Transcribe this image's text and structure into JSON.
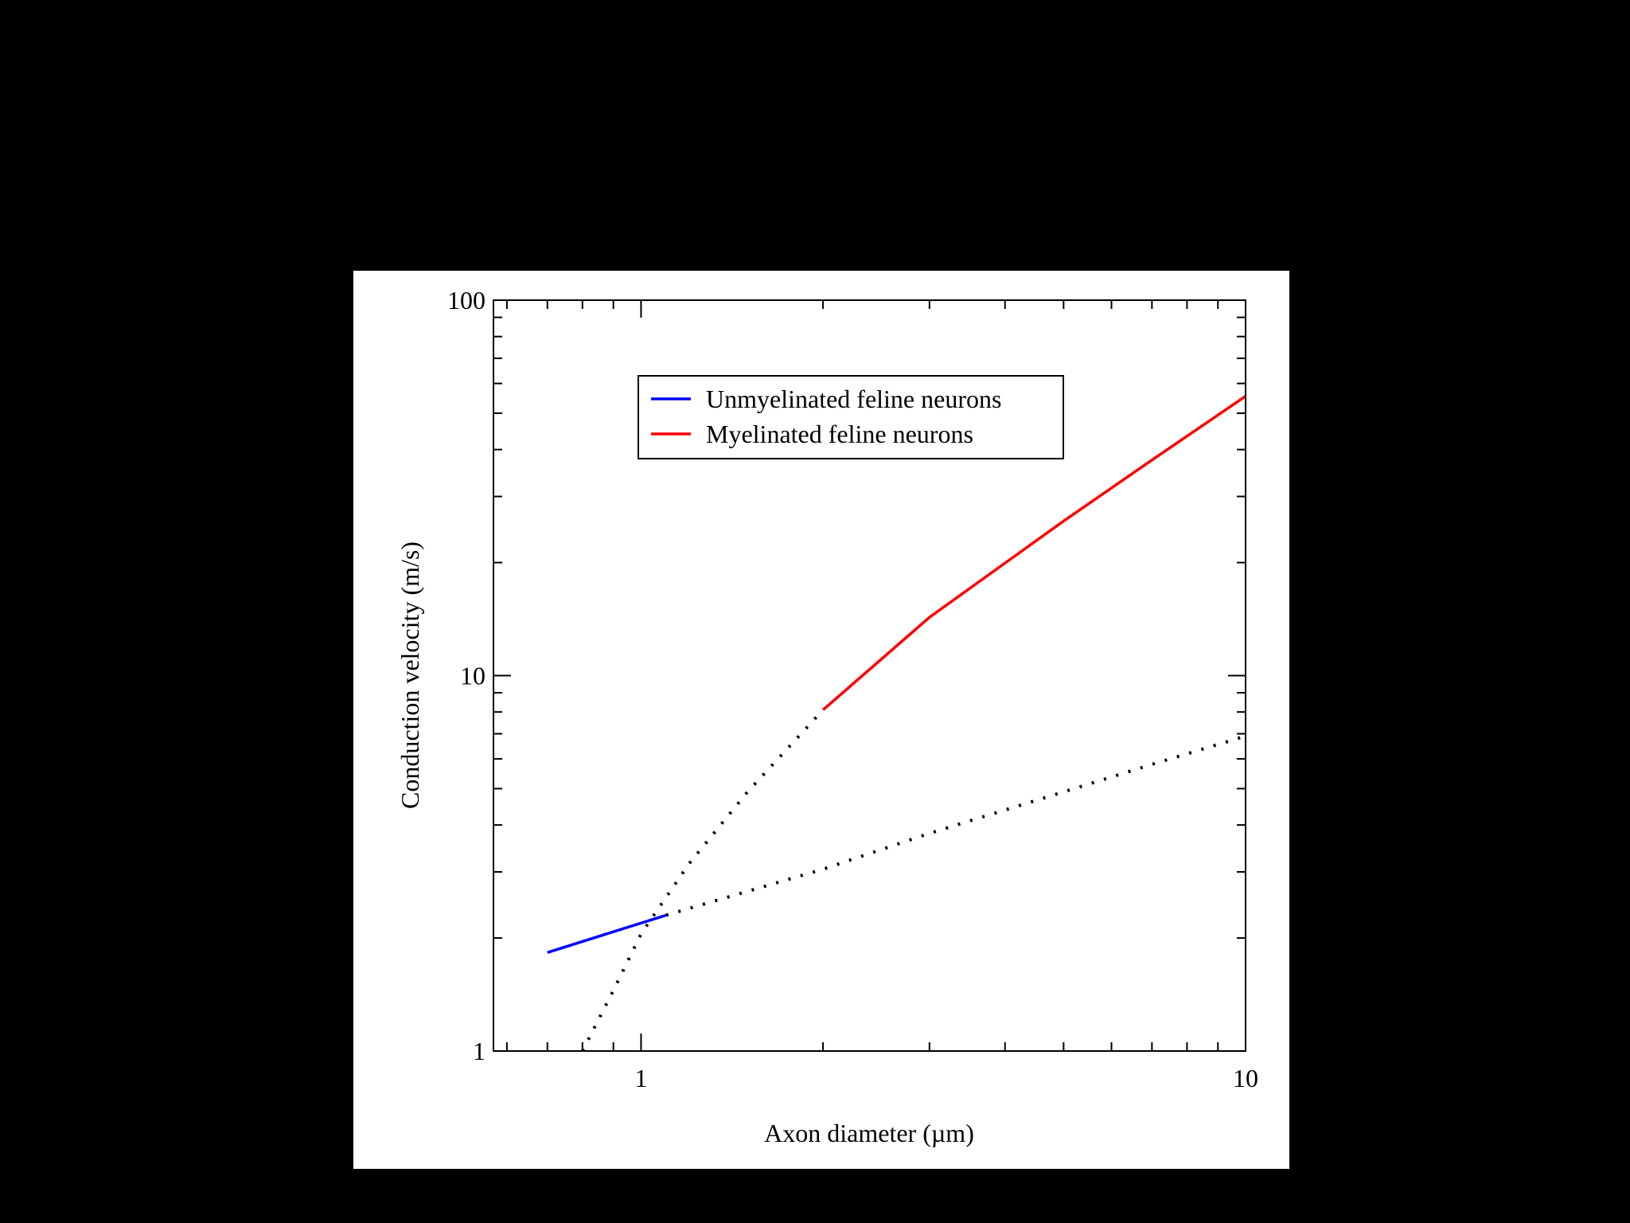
{
  "chart_data": {
    "type": "line",
    "title": "",
    "xlabel": "Axon diameter (µm)",
    "ylabel": "Conduction velocity (m/s)",
    "x_scale": "log",
    "y_scale": "log",
    "xlim": [
      0.57,
      10
    ],
    "ylim": [
      1,
      100
    ],
    "x_tick_labels": [
      {
        "value": 1,
        "label": "1"
      },
      {
        "value": 10,
        "label": "10"
      }
    ],
    "y_tick_labels": [
      {
        "value": 1,
        "label": "1"
      },
      {
        "value": 10,
        "label": "10"
      },
      {
        "value": 100,
        "label": "100"
      }
    ],
    "grid": false,
    "legend_position": "top-center",
    "series": [
      {
        "name": "Unmyelinated feline neurons",
        "color": "#0000ff",
        "style": "solid",
        "points": [
          [
            0.7,
            1.83
          ],
          [
            1.1,
            2.3
          ]
        ]
      },
      {
        "name": "Myelinated feline neurons",
        "color": "#ff0000",
        "style": "solid",
        "points": [
          [
            2.0,
            8.1
          ],
          [
            3.0,
            14.3
          ],
          [
            5.0,
            25.8
          ],
          [
            7.0,
            37.5
          ],
          [
            10.0,
            55.5
          ]
        ]
      },
      {
        "name": "",
        "color": "#000000",
        "style": "dotted",
        "points": [
          [
            1.1,
            2.3
          ],
          [
            2.0,
            3.05
          ],
          [
            3.0,
            3.8
          ],
          [
            5.0,
            4.9
          ],
          [
            7.0,
            5.8
          ],
          [
            10.0,
            6.9
          ]
        ]
      },
      {
        "name": "",
        "color": "#000000",
        "style": "dotted",
        "points": [
          [
            0.8,
            1.0
          ],
          [
            0.9,
            1.45
          ],
          [
            1.0,
            2.05
          ],
          [
            1.2,
            3.15
          ],
          [
            1.5,
            4.9
          ],
          [
            2.0,
            8.1
          ]
        ]
      }
    ]
  }
}
